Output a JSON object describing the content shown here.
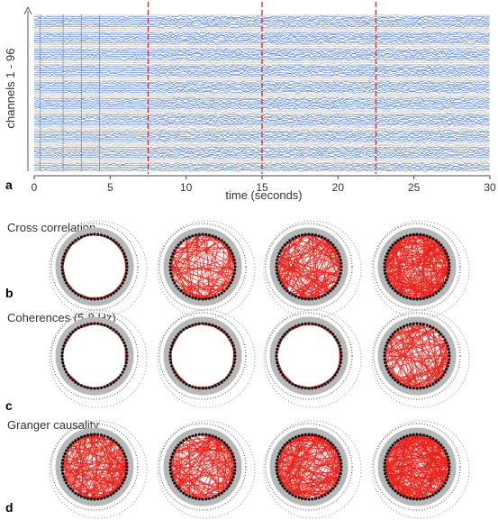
{
  "figure": {
    "panel_letters": [
      "a",
      "b",
      "c",
      "d"
    ],
    "timeseries": {
      "ylabel": "channels 1 - 96",
      "xlabel": "time (seconds)",
      "xlim": [
        0,
        30
      ],
      "xticks": [
        0,
        5,
        10,
        15,
        20,
        25,
        30
      ],
      "markers_seconds": [
        7.5,
        15,
        22.5
      ],
      "channel_count": 96,
      "trace_color": "#2e5fb8",
      "marker_color": "#e0211f"
    },
    "networks": [
      {
        "label": "Cross correlation",
        "density": [
          0.25,
          0.45,
          0.65,
          0.95
        ]
      },
      {
        "label": "Coherences (5-8 Hz)",
        "density": [
          0.2,
          0.28,
          0.38,
          0.5
        ]
      },
      {
        "label": "Granger causality",
        "density": [
          0.7,
          0.6,
          0.75,
          1.0
        ]
      }
    ],
    "edge_color": "#e8201a",
    "node_color": "#111111",
    "ring_color": "#b8b8b8"
  }
}
